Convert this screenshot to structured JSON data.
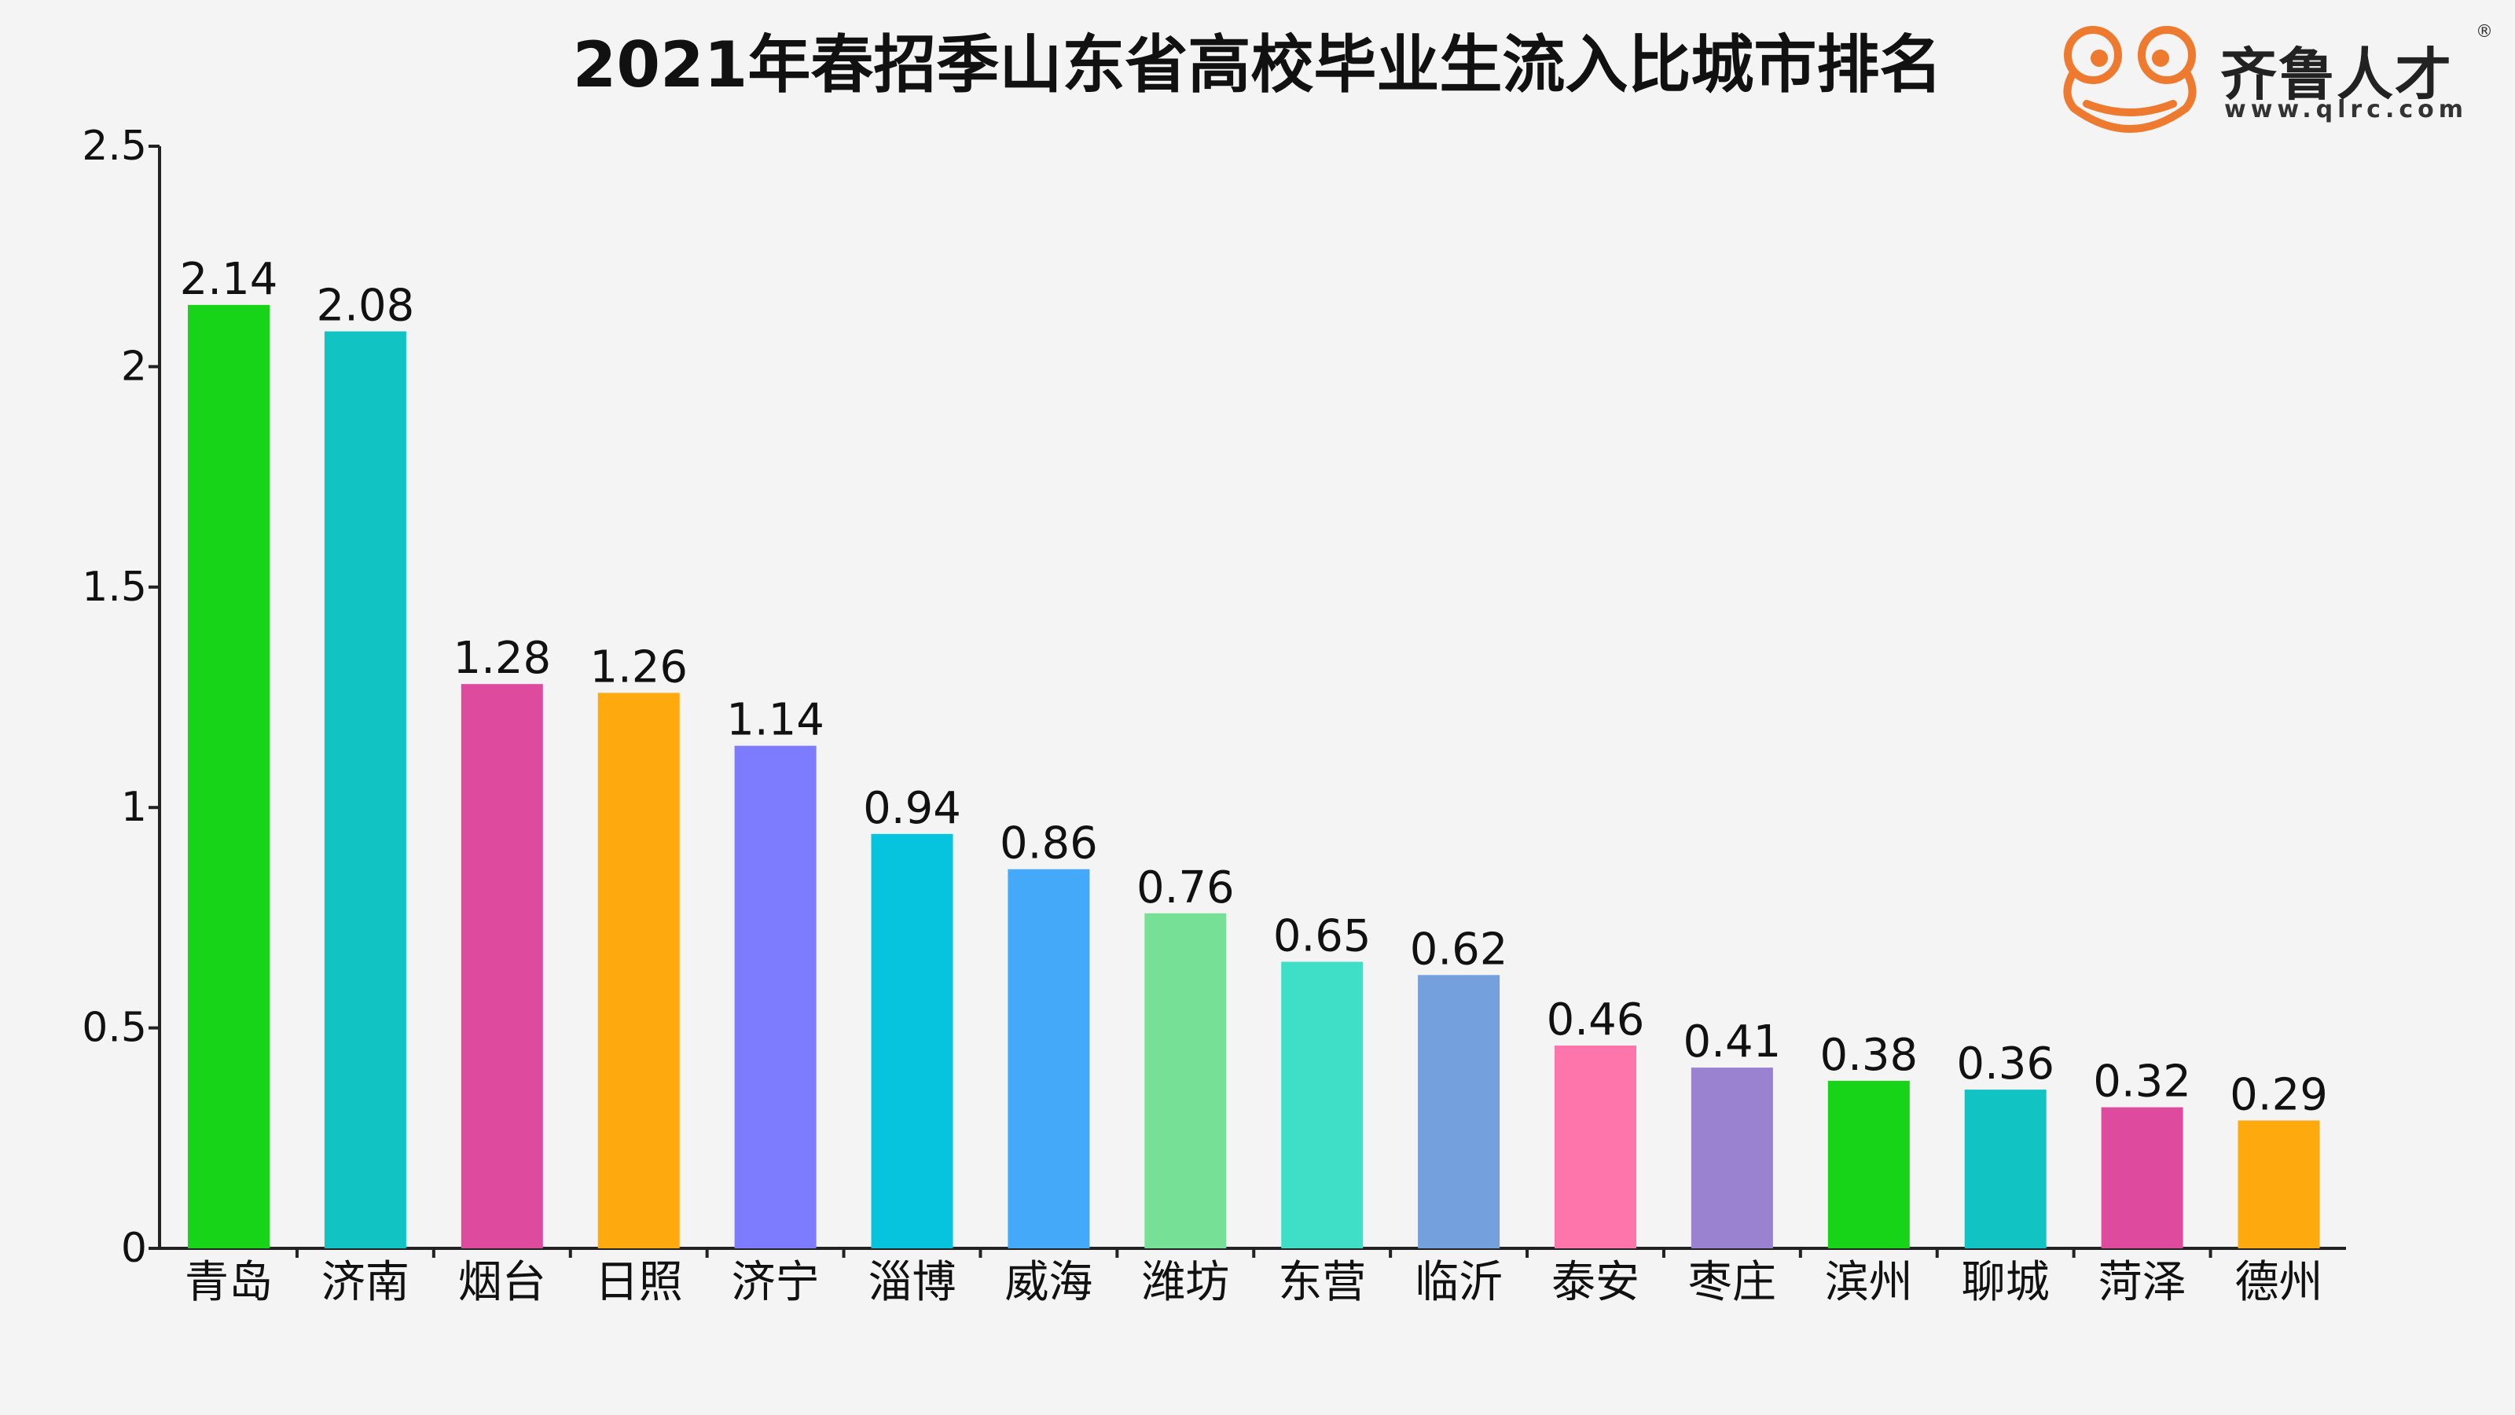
{
  "chart_data": {
    "type": "bar",
    "title": "2021年春招季山东省高校毕业生流入比城市排名",
    "xlabel": "",
    "ylabel": "",
    "ylim": [
      0,
      2.5
    ],
    "yticks": [
      "0",
      "0.5",
      "1",
      "1.5",
      "2",
      "2.5"
    ],
    "ytick_values": [
      0,
      0.5,
      1,
      1.5,
      2,
      2.5
    ],
    "grid": false,
    "legend": "none",
    "categories": [
      "青岛",
      "济南",
      "烟台",
      "日照",
      "济宁",
      "淄博",
      "威海",
      "潍坊",
      "东营",
      "临沂",
      "泰安",
      "枣庄",
      "滨州",
      "聊城",
      "菏泽",
      "德州"
    ],
    "values": [
      2.14,
      2.08,
      1.28,
      1.26,
      1.14,
      0.94,
      0.86,
      0.76,
      0.65,
      0.62,
      0.46,
      0.41,
      0.38,
      0.36,
      0.32,
      0.29
    ],
    "value_labels": [
      "2.14",
      "2.08",
      "1.28",
      "1.26",
      "1.14",
      "0.94",
      "0.86",
      "0.76",
      "0.65",
      "0.62",
      "0.46",
      "0.41",
      "0.38",
      "0.36",
      "0.32",
      "0.29"
    ],
    "colors": [
      "#18d418",
      "#12c3c3",
      "#de4a9e",
      "#fea90d",
      "#7d7cff",
      "#06c4de",
      "#44a9f8",
      "#76e097",
      "#3fdfc7",
      "#74a0de",
      "#fe75ab",
      "#9a82d1",
      "#18d418",
      "#12c3c3",
      "#de4a9e",
      "#fea90d"
    ]
  },
  "logo": {
    "name": "齐鲁人才",
    "url": "www.qlrc.com",
    "registered_mark": "®",
    "accent_color": "#ee7a2f",
    "icon": "frog-icon"
  }
}
